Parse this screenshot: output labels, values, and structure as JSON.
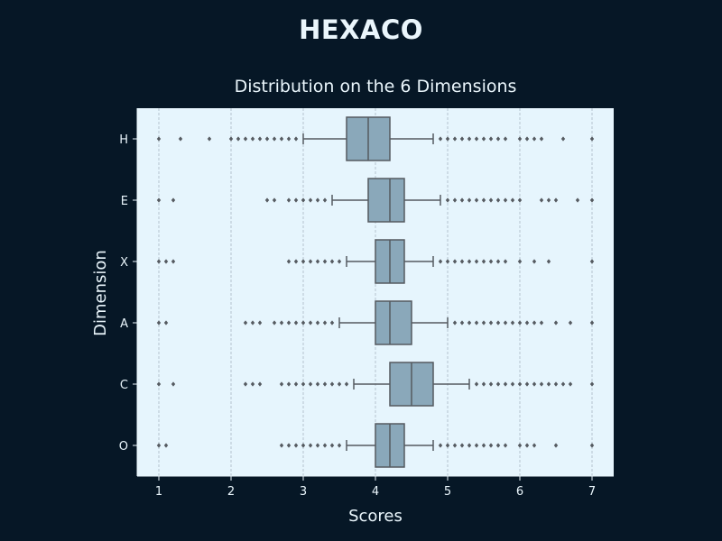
{
  "suptitle": "HEXACO",
  "chart_data": {
    "type": "boxplot",
    "orientation": "horizontal",
    "title": "Distribution on the 6 Dimensions",
    "xlabel": "Scores",
    "ylabel": "Dimension",
    "xlim": [
      0.7,
      7.3
    ],
    "xticks": [
      1,
      2,
      3,
      4,
      5,
      6,
      7
    ],
    "grid": "vertical dashed",
    "colors": {
      "background": "#061726",
      "plot_bg": "#e6f5fd",
      "box_fill": "#8aa8ba",
      "line": "#555a60",
      "text": "#eaf6fc"
    },
    "categories": [
      "H",
      "E",
      "X",
      "A",
      "C",
      "O"
    ],
    "boxes": [
      {
        "name": "H",
        "whisker_low": 3.0,
        "q1": 3.6,
        "median": 3.9,
        "q3": 4.2,
        "whisker_high": 4.8,
        "outliers": [
          1.0,
          1.3,
          1.7,
          2.0,
          2.1,
          2.2,
          2.3,
          2.4,
          2.5,
          2.6,
          2.7,
          2.8,
          2.9,
          4.9,
          5.0,
          5.1,
          5.2,
          5.3,
          5.4,
          5.5,
          5.6,
          5.7,
          5.8,
          6.0,
          6.1,
          6.2,
          6.3,
          6.6,
          7.0
        ]
      },
      {
        "name": "E",
        "whisker_low": 3.4,
        "q1": 3.9,
        "median": 4.2,
        "q3": 4.4,
        "whisker_high": 4.9,
        "outliers": [
          1.0,
          1.2,
          2.5,
          2.6,
          2.8,
          2.9,
          3.0,
          3.1,
          3.2,
          3.3,
          5.0,
          5.1,
          5.2,
          5.3,
          5.4,
          5.5,
          5.6,
          5.7,
          5.8,
          5.9,
          6.0,
          6.3,
          6.4,
          6.5,
          6.8,
          7.0
        ]
      },
      {
        "name": "X",
        "whisker_low": 3.6,
        "q1": 4.0,
        "median": 4.2,
        "q3": 4.4,
        "whisker_high": 4.8,
        "outliers": [
          1.0,
          1.1,
          1.2,
          2.8,
          2.9,
          3.0,
          3.1,
          3.2,
          3.3,
          3.4,
          3.5,
          4.9,
          5.0,
          5.1,
          5.2,
          5.3,
          5.4,
          5.5,
          5.6,
          5.7,
          5.8,
          6.0,
          6.2,
          6.4,
          7.0
        ]
      },
      {
        "name": "A",
        "whisker_low": 3.5,
        "q1": 4.0,
        "median": 4.2,
        "q3": 4.5,
        "whisker_high": 5.0,
        "outliers": [
          1.0,
          1.1,
          2.2,
          2.3,
          2.4,
          2.6,
          2.7,
          2.8,
          2.9,
          3.0,
          3.1,
          3.2,
          3.3,
          3.4,
          5.1,
          5.2,
          5.3,
          5.4,
          5.5,
          5.6,
          5.7,
          5.8,
          5.9,
          6.0,
          6.1,
          6.2,
          6.3,
          6.5,
          6.7,
          7.0
        ]
      },
      {
        "name": "C",
        "whisker_low": 3.7,
        "q1": 4.2,
        "median": 4.5,
        "q3": 4.8,
        "whisker_high": 5.3,
        "outliers": [
          1.0,
          1.2,
          2.2,
          2.3,
          2.4,
          2.7,
          2.8,
          2.9,
          3.0,
          3.1,
          3.2,
          3.3,
          3.4,
          3.5,
          3.6,
          5.4,
          5.5,
          5.6,
          5.7,
          5.8,
          5.9,
          6.0,
          6.1,
          6.2,
          6.3,
          6.4,
          6.5,
          6.6,
          6.7,
          7.0
        ]
      },
      {
        "name": "O",
        "whisker_low": 3.6,
        "q1": 4.0,
        "median": 4.2,
        "q3": 4.4,
        "whisker_high": 4.8,
        "outliers": [
          1.0,
          1.1,
          2.7,
          2.8,
          2.9,
          3.0,
          3.1,
          3.2,
          3.3,
          3.4,
          3.5,
          4.9,
          5.0,
          5.1,
          5.2,
          5.3,
          5.4,
          5.5,
          5.6,
          5.7,
          5.8,
          6.0,
          6.1,
          6.2,
          6.5,
          7.0
        ]
      }
    ]
  }
}
